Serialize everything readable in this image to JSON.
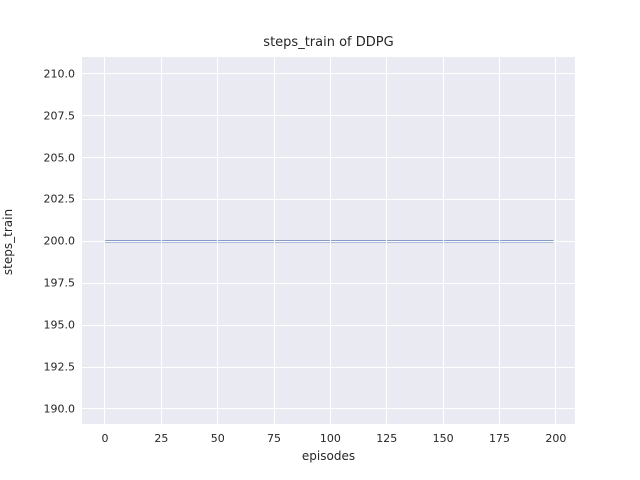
{
  "chart_data": {
    "type": "line",
    "title": "steps_train of DDPG",
    "xlabel": "episodes",
    "ylabel": "steps_train",
    "xlim": [
      -10.2,
      208.5
    ],
    "ylim": [
      189.1,
      211.0
    ],
    "grid": true,
    "legend": "none",
    "plot_bg_color": "#EAEAF2",
    "grid_color": "#FFFFFF",
    "text_color": "#262626",
    "xticks": [
      {
        "v": 0,
        "label": "0"
      },
      {
        "v": 25,
        "label": "25"
      },
      {
        "v": 50,
        "label": "50"
      },
      {
        "v": 75,
        "label": "75"
      },
      {
        "v": 100,
        "label": "100"
      },
      {
        "v": 125,
        "label": "125"
      },
      {
        "v": 150,
        "label": "150"
      },
      {
        "v": 175,
        "label": "175"
      },
      {
        "v": 200,
        "label": "200"
      }
    ],
    "yticks": [
      {
        "v": 190.0,
        "label": "190.0"
      },
      {
        "v": 192.5,
        "label": "192.5"
      },
      {
        "v": 195.0,
        "label": "195.0"
      },
      {
        "v": 197.5,
        "label": "197.5"
      },
      {
        "v": 200.0,
        "label": "200.0"
      },
      {
        "v": 202.5,
        "label": "202.5"
      },
      {
        "v": 205.0,
        "label": "205.0"
      },
      {
        "v": 207.5,
        "label": "207.5"
      },
      {
        "v": 210.0,
        "label": "210.0"
      }
    ],
    "series": [
      {
        "name": "steps_train",
        "color": "#4C72B0",
        "line_width": 2,
        "note": "constant value 200 for every episode 0-199",
        "x": [
          0,
          199
        ],
        "y": [
          200,
          200
        ]
      }
    ]
  }
}
